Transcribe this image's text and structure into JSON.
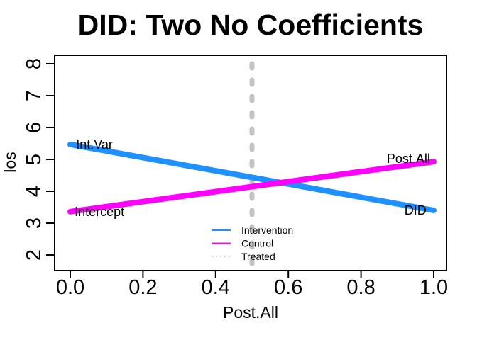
{
  "chart_data": {
    "type": "line",
    "title": "DID: Two No Coefficients",
    "xlabel": "Post.All",
    "ylabel": "los",
    "xlim": [
      0,
      1
    ],
    "ylim": [
      2,
      8
    ],
    "grid": false,
    "x_ticks": [
      {
        "v": 0.0,
        "label": "0.0"
      },
      {
        "v": 0.2,
        "label": "0.2"
      },
      {
        "v": 0.4,
        "label": "0.4"
      },
      {
        "v": 0.6,
        "label": "0.6"
      },
      {
        "v": 0.8,
        "label": "0.8"
      },
      {
        "v": 1.0,
        "label": "1.0"
      }
    ],
    "y_ticks": [
      {
        "v": 2,
        "label": "2"
      },
      {
        "v": 3,
        "label": "3"
      },
      {
        "v": 4,
        "label": "4"
      },
      {
        "v": 5,
        "label": "5"
      },
      {
        "v": 6,
        "label": "6"
      },
      {
        "v": 7,
        "label": "7"
      },
      {
        "v": 8,
        "label": "8"
      }
    ],
    "series": [
      {
        "name": "Intervention",
        "color": "#1E90FF",
        "x": [
          0,
          1
        ],
        "y": [
          5.47,
          3.4
        ],
        "linewidth": 8,
        "style": "solid"
      },
      {
        "name": "Control",
        "color": "#FF00FF",
        "x": [
          0,
          1
        ],
        "y": [
          3.36,
          4.93
        ],
        "linewidth": 8,
        "style": "solid"
      }
    ],
    "vline": {
      "name": "Treated",
      "x": 0.5,
      "color": "#C3C3C3",
      "style": "dashed",
      "linewidth": 7
    },
    "annotations": [
      {
        "text": "Int.Var",
        "x": 0.016,
        "y": 5.47,
        "anchor": "start"
      },
      {
        "text": "Intercept",
        "x": 0.012,
        "y": 3.36,
        "anchor": "start"
      },
      {
        "text": "Post.All",
        "x": 0.99,
        "y": 5.02,
        "anchor": "end"
      },
      {
        "text": "DID",
        "x": 0.98,
        "y": 3.4,
        "anchor": "end"
      }
    ],
    "legend": {
      "position": "bottom-center-inside",
      "entries": [
        {
          "label": "Intervention",
          "color": "#1E90FF",
          "style": "solid"
        },
        {
          "label": "Control",
          "color": "#FF00FF",
          "style": "solid"
        },
        {
          "label": "Treated",
          "color": "#C3C3C3",
          "style": "dotted"
        }
      ]
    },
    "colors": {
      "axis": "#000000",
      "background": "#FFFFFF"
    }
  }
}
